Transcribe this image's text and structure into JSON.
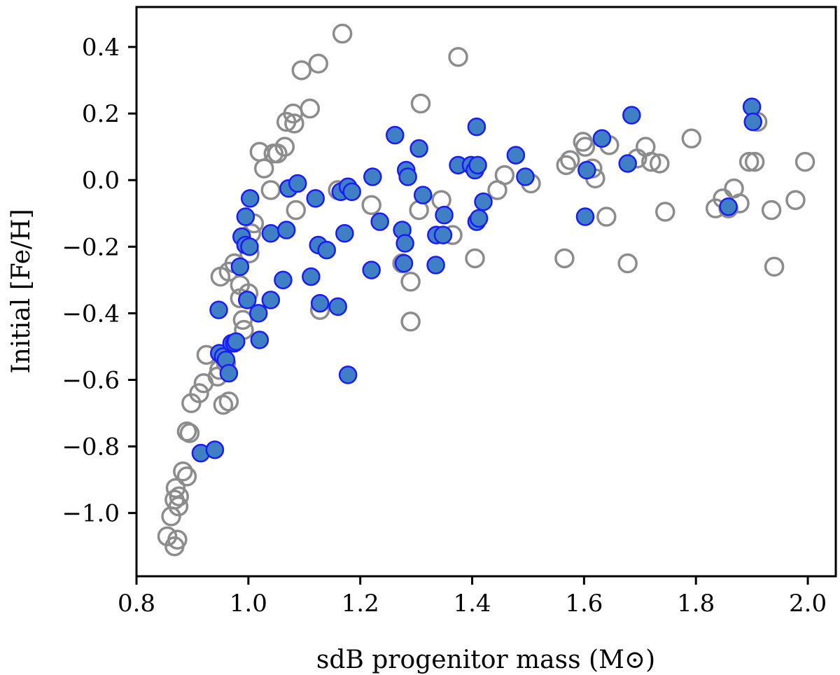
{
  "chart_data": {
    "type": "scatter",
    "title": "",
    "xlabel": "sdB progenitor mass (M⊙)",
    "ylabel": "Initial [Fe/H]",
    "xlim": [
      0.8,
      2.05
    ],
    "ylim": [
      -1.19,
      0.52
    ],
    "x_ticks": [
      0.8,
      1.0,
      1.2,
      1.4,
      1.6,
      1.8,
      2.0
    ],
    "x_tick_labels": [
      "0.8",
      "1.0",
      "1.2",
      "1.4",
      "1.6",
      "1.8",
      "2.0"
    ],
    "y_ticks": [
      0.4,
      0.2,
      0.0,
      -0.2,
      -0.4,
      -0.6,
      -0.8,
      -1.0
    ],
    "y_tick_labels": [
      "0.4",
      "0.2",
      "0.0",
      "−0.2",
      "−0.4",
      "−0.6",
      "−0.8",
      "−1.0"
    ],
    "grid": false,
    "legend": null,
    "series": [
      {
        "name": "open",
        "style": "open-circle",
        "edge_color": "#8c8c8c",
        "points": [
          [
            0.855,
            -1.07
          ],
          [
            0.862,
            -1.01
          ],
          [
            0.868,
            -1.1
          ],
          [
            0.873,
            -1.08
          ],
          [
            0.868,
            -0.96
          ],
          [
            0.876,
            -0.95
          ],
          [
            0.875,
            -0.98
          ],
          [
            0.87,
            -0.925
          ],
          [
            0.883,
            -0.875
          ],
          [
            0.89,
            -0.89
          ],
          [
            0.89,
            -0.755
          ],
          [
            0.895,
            -0.76
          ],
          [
            0.898,
            -0.67
          ],
          [
            0.912,
            -0.64
          ],
          [
            0.92,
            -0.61
          ],
          [
            0.925,
            -0.525
          ],
          [
            0.945,
            -0.59
          ],
          [
            0.948,
            -0.57
          ],
          [
            0.955,
            -0.675
          ],
          [
            0.965,
            -0.665
          ],
          [
            0.96,
            -0.55
          ],
          [
            0.95,
            -0.29
          ],
          [
            0.965,
            -0.275
          ],
          [
            0.975,
            -0.25
          ],
          [
            0.985,
            -0.315
          ],
          [
            0.985,
            -0.355
          ],
          [
            0.99,
            -0.42
          ],
          [
            0.992,
            -0.45
          ],
          [
            1.0,
            -0.34
          ],
          [
            1.002,
            -0.22
          ],
          [
            1.005,
            -0.16
          ],
          [
            1.01,
            -0.13
          ],
          [
            1.02,
            0.085
          ],
          [
            1.028,
            0.035
          ],
          [
            1.04,
            -0.03
          ],
          [
            1.045,
            0.08
          ],
          [
            1.052,
            0.08
          ],
          [
            1.065,
            0.1
          ],
          [
            1.068,
            0.175
          ],
          [
            1.08,
            0.2
          ],
          [
            1.082,
            0.17
          ],
          [
            1.085,
            -0.09
          ],
          [
            1.095,
            0.33
          ],
          [
            1.11,
            0.215
          ],
          [
            1.125,
            0.35
          ],
          [
            1.128,
            -0.39
          ],
          [
            1.168,
            0.44
          ],
          [
            1.16,
            -0.03
          ],
          [
            1.22,
            -0.075
          ],
          [
            1.275,
            -0.25
          ],
          [
            1.29,
            -0.305
          ],
          [
            1.29,
            -0.425
          ],
          [
            1.305,
            -0.09
          ],
          [
            1.308,
            0.23
          ],
          [
            1.345,
            -0.06
          ],
          [
            1.365,
            -0.165
          ],
          [
            1.375,
            0.37
          ],
          [
            1.405,
            -0.235
          ],
          [
            1.445,
            -0.03
          ],
          [
            1.458,
            0.015
          ],
          [
            1.505,
            -0.01
          ],
          [
            1.565,
            -0.235
          ],
          [
            1.568,
            0.045
          ],
          [
            1.575,
            0.06
          ],
          [
            1.598,
            0.115
          ],
          [
            1.602,
            0.1
          ],
          [
            1.615,
            0.035
          ],
          [
            1.62,
            0.005
          ],
          [
            1.64,
            -0.11
          ],
          [
            1.645,
            0.105
          ],
          [
            1.678,
            -0.25
          ],
          [
            1.695,
            0.065
          ],
          [
            1.71,
            0.1
          ],
          [
            1.72,
            0.055
          ],
          [
            1.735,
            0.05
          ],
          [
            1.745,
            -0.095
          ],
          [
            1.792,
            0.125
          ],
          [
            1.835,
            -0.085
          ],
          [
            1.848,
            -0.055
          ],
          [
            1.858,
            -0.085
          ],
          [
            1.868,
            -0.025
          ],
          [
            1.878,
            -0.07
          ],
          [
            1.895,
            0.055
          ],
          [
            1.905,
            0.055
          ],
          [
            1.91,
            0.175
          ],
          [
            1.935,
            -0.09
          ],
          [
            1.94,
            -0.26
          ],
          [
            1.978,
            -0.06
          ],
          [
            1.995,
            0.055
          ]
        ]
      },
      {
        "name": "filled",
        "style": "filled-circle",
        "face_color": "#3f7fc4",
        "edge_color": "#1a1aff",
        "points": [
          [
            0.915,
            -0.82
          ],
          [
            0.94,
            -0.81
          ],
          [
            0.947,
            -0.39
          ],
          [
            0.948,
            -0.52
          ],
          [
            0.955,
            -0.53
          ],
          [
            0.96,
            -0.54
          ],
          [
            0.965,
            -0.58
          ],
          [
            0.97,
            -0.49
          ],
          [
            0.975,
            -0.49
          ],
          [
            0.978,
            -0.485
          ],
          [
            0.985,
            -0.26
          ],
          [
            0.988,
            -0.17
          ],
          [
            0.995,
            -0.195
          ],
          [
            0.998,
            -0.36
          ],
          [
            0.995,
            -0.11
          ],
          [
            1.003,
            -0.055
          ],
          [
            1.002,
            -0.2
          ],
          [
            1.018,
            -0.4
          ],
          [
            1.02,
            -0.48
          ],
          [
            1.04,
            -0.36
          ],
          [
            1.04,
            -0.16
          ],
          [
            1.062,
            -0.3
          ],
          [
            1.068,
            -0.15
          ],
          [
            1.072,
            -0.025
          ],
          [
            1.088,
            -0.01
          ],
          [
            1.112,
            -0.29
          ],
          [
            1.12,
            -0.055
          ],
          [
            1.125,
            -0.195
          ],
          [
            1.128,
            -0.37
          ],
          [
            1.14,
            -0.21
          ],
          [
            1.16,
            -0.38
          ],
          [
            1.165,
            -0.035
          ],
          [
            1.172,
            -0.16
          ],
          [
            1.178,
            -0.02
          ],
          [
            1.178,
            -0.585
          ],
          [
            1.185,
            -0.035
          ],
          [
            1.22,
            -0.27
          ],
          [
            1.222,
            0.01
          ],
          [
            1.235,
            -0.125
          ],
          [
            1.262,
            0.135
          ],
          [
            1.275,
            -0.15
          ],
          [
            1.278,
            -0.25
          ],
          [
            1.28,
            -0.19
          ],
          [
            1.282,
            0.03
          ],
          [
            1.285,
            0.01
          ],
          [
            1.305,
            0.095
          ],
          [
            1.312,
            -0.045
          ],
          [
            1.335,
            -0.255
          ],
          [
            1.336,
            -0.165
          ],
          [
            1.348,
            -0.165
          ],
          [
            1.35,
            -0.105
          ],
          [
            1.375,
            0.045
          ],
          [
            1.398,
            0.045
          ],
          [
            1.405,
            0.03
          ],
          [
            1.408,
            0.16
          ],
          [
            1.41,
            0.045
          ],
          [
            1.408,
            -0.125
          ],
          [
            1.412,
            -0.115
          ],
          [
            1.42,
            -0.065
          ],
          [
            1.478,
            0.075
          ],
          [
            1.495,
            0.01
          ],
          [
            1.602,
            -0.11
          ],
          [
            1.605,
            0.03
          ],
          [
            1.632,
            0.125
          ],
          [
            1.678,
            0.05
          ],
          [
            1.685,
            0.195
          ],
          [
            1.858,
            -0.08
          ],
          [
            1.9,
            0.22
          ],
          [
            1.902,
            0.175
          ]
        ]
      }
    ]
  }
}
